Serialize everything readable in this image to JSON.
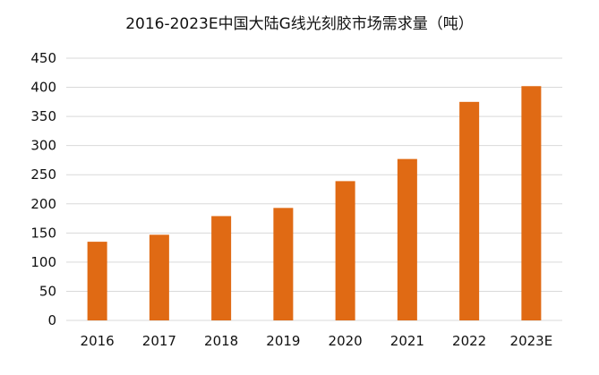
{
  "chart_data": {
    "type": "bar",
    "title": "2016-2023E中国大陆G线光刻胶市场需求量（吨）",
    "categories": [
      "2016",
      "2017",
      "2018",
      "2019",
      "2020",
      "2021",
      "2022",
      "2023E"
    ],
    "series": [
      {
        "values": [
          135,
          147,
          179,
          193,
          239,
          277,
          375,
          402
        ]
      }
    ],
    "ylim": [
      0,
      450
    ],
    "yticks": [
      0,
      50,
      100,
      150,
      200,
      250,
      300,
      350,
      400,
      450
    ],
    "grid": true,
    "legend": "none",
    "colors": {
      "bar": "#E06A14",
      "grid": "#D9D9D9",
      "text": "#111111"
    }
  }
}
